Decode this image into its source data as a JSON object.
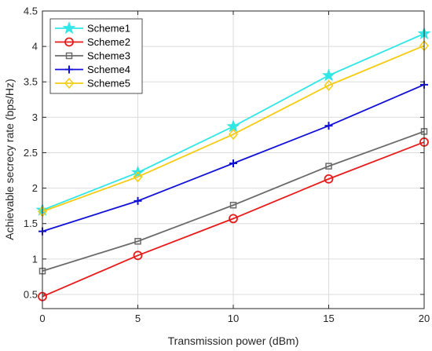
{
  "chart_data": {
    "type": "line",
    "x": [
      0,
      5,
      10,
      15,
      20
    ],
    "series": [
      {
        "name": "Scheme1",
        "values": [
          1.69,
          2.22,
          2.87,
          3.59,
          4.18
        ],
        "color": "#33e6e6",
        "marker": "star"
      },
      {
        "name": "Scheme2",
        "values": [
          0.47,
          1.05,
          1.57,
          2.13,
          2.65
        ],
        "color": "#e81b1b",
        "marker": "circle"
      },
      {
        "name": "Scheme3",
        "values": [
          0.83,
          1.25,
          1.76,
          2.31,
          2.8
        ],
        "color": "#6b6b6b",
        "marker": "square"
      },
      {
        "name": "Scheme4",
        "values": [
          1.39,
          1.82,
          2.35,
          2.88,
          3.46
        ],
        "color": "#1010d8",
        "marker": "plus"
      },
      {
        "name": "Scheme5",
        "values": [
          1.67,
          2.16,
          2.76,
          3.45,
          4.01
        ],
        "color": "#f5cc12",
        "marker": "diamond"
      }
    ],
    "xlabel": "Transmission power (dBm)",
    "ylabel": "Achievable secrecy rate (bps/Hz)",
    "xlim": [
      0,
      20
    ],
    "ylim": [
      0.3,
      4.5
    ],
    "xticks": [
      "0",
      "5",
      "10",
      "15",
      "20"
    ],
    "yticks": [
      "0.5",
      "1",
      "1.5",
      "2",
      "2.5",
      "3",
      "3.5",
      "4",
      "4.5"
    ],
    "grid": true,
    "legend_position": "top-left"
  }
}
